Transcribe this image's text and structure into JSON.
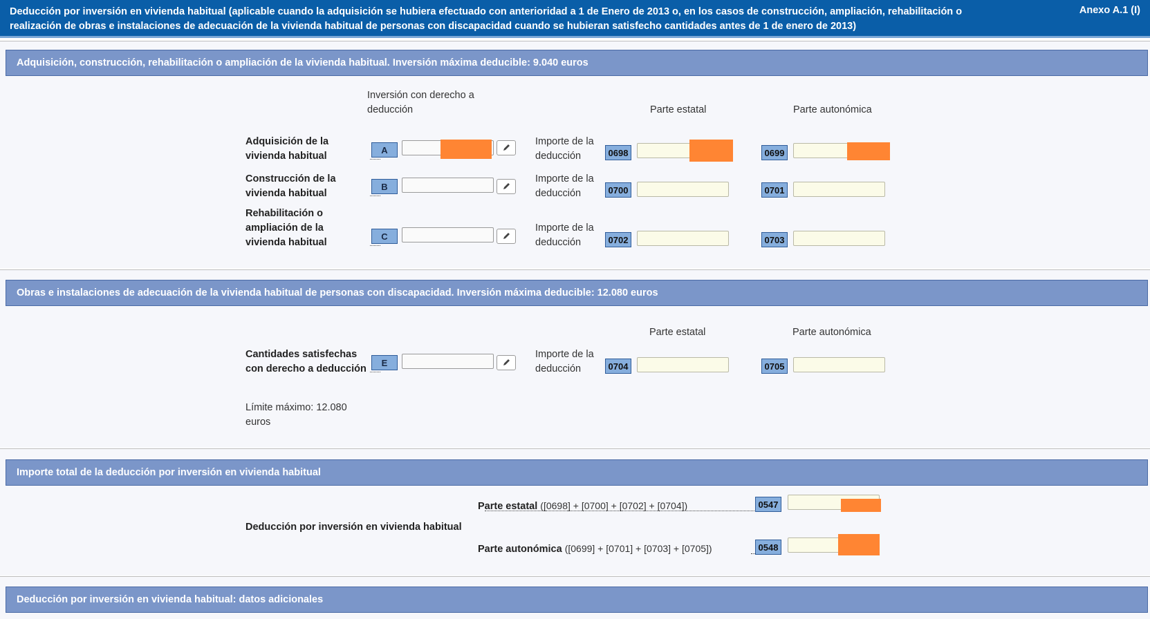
{
  "header": {
    "title": "Deducción por inversión en vivienda habitual (aplicable cuando la adquisición se hubiera efectuado con anterioridad a 1 de Enero de 2013 o, en los casos de construcción, ampliación, rehabilitación o realización de obras e instalaciones de adecuación de la vivienda habitual de personas con discapacidad cuando se hubieran satisfecho cantidades antes de 1 de enero de 2013)",
    "annex": "Anexo A.1 (I)"
  },
  "colors": {
    "topbar": "#0a5ea8",
    "section_header": "#7b96c9",
    "code_box": "#86aedd",
    "redaction": "#ff8533"
  },
  "section1": {
    "header": "Adquisición, construcción, rehabilitación o ampliación de la vivienda habitual. Inversión máxima deducible: 9.040 euros",
    "col_investment_line1": "Inversión con derecho a",
    "col_investment_line2": "deducción",
    "col_state": "Parte estatal",
    "col_regional": "Parte autonómica",
    "rows": [
      {
        "label_l1": "Adquisición de la",
        "label_l2": "vivienda habitual",
        "label_l3": "",
        "letter": "A",
        "imp_l1": "Importe de la",
        "imp_l2": "deducción",
        "code_state": "0698",
        "code_regional": "0699"
      },
      {
        "label_l1": "Construcción de la",
        "label_l2": "vivienda habitual",
        "label_l3": "",
        "letter": "B",
        "imp_l1": "Importe de la",
        "imp_l2": "deducción",
        "code_state": "0700",
        "code_regional": "0701"
      },
      {
        "label_l1": "Rehabilitación o",
        "label_l2": "ampliación de la",
        "label_l3": "vivienda habitual",
        "letter": "C",
        "imp_l1": "Importe de la",
        "imp_l2": "deducción",
        "code_state": "0702",
        "code_regional": "0703"
      }
    ]
  },
  "section2": {
    "header": "Obras e instalaciones de adecuación de la vivienda habitual de personas con discapacidad. Inversión máxima deducible: 12.080 euros",
    "col_state": "Parte estatal",
    "col_regional": "Parte autonómica",
    "label_l1": "Cantidades satisfechas",
    "label_l2": "con derecho a deducción",
    "letter": "E",
    "imp_l1": "Importe de la",
    "imp_l2": "deducción",
    "code_state": "0704",
    "code_regional": "0705",
    "limit_l1": "Límite máximo: 12.080",
    "limit_l2": "euros"
  },
  "section3": {
    "header": "Importe total de la deducción por inversión en vivienda habitual",
    "main_label": "Deducción por inversión en vivienda habitual",
    "state_label": "Parte estatal",
    "state_formula": "([0698] + [0700] + [0702] + [0704])",
    "state_code": "0547",
    "regional_label": "Parte autonómica",
    "regional_formula": "([0699] + [0701] + [0703] + [0705])",
    "regional_code": "0548"
  },
  "section4": {
    "header": "Deducción por inversión en vivienda habitual: datos adicionales"
  }
}
